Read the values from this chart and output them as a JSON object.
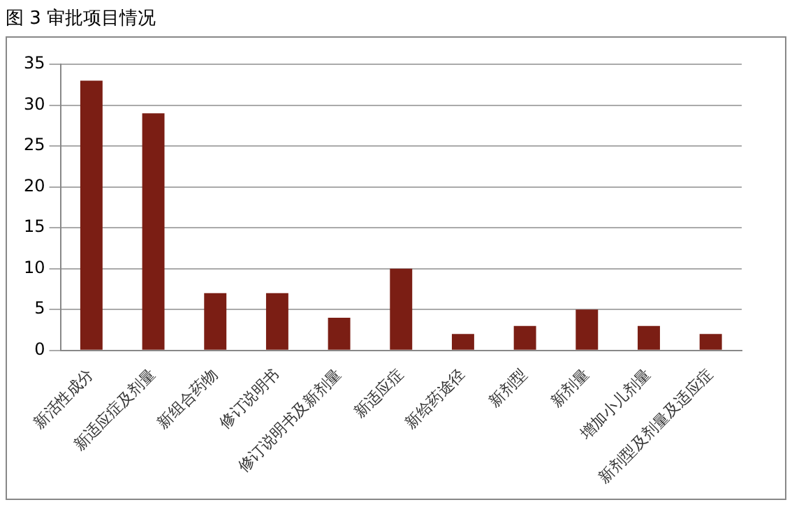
{
  "chart_data": {
    "type": "bar",
    "title": "图 3 审批项目情况",
    "categories": [
      "新活性成分",
      "新适应症及剂量",
      "新组合药物",
      "修订说明书",
      "修订说明书及新剂量",
      "新适应症",
      "新给药途径",
      "新剂型",
      "新剂量",
      "增加小儿剂量",
      "新剂型及剂量及适应症"
    ],
    "values": [
      33,
      29,
      7,
      7,
      4,
      10,
      2,
      3,
      5,
      3,
      2
    ],
    "color": "#7b1e14",
    "ylim": [
      0,
      35
    ],
    "yticks": [
      0,
      5,
      10,
      15,
      20,
      25,
      30,
      35
    ],
    "grid": "y"
  }
}
